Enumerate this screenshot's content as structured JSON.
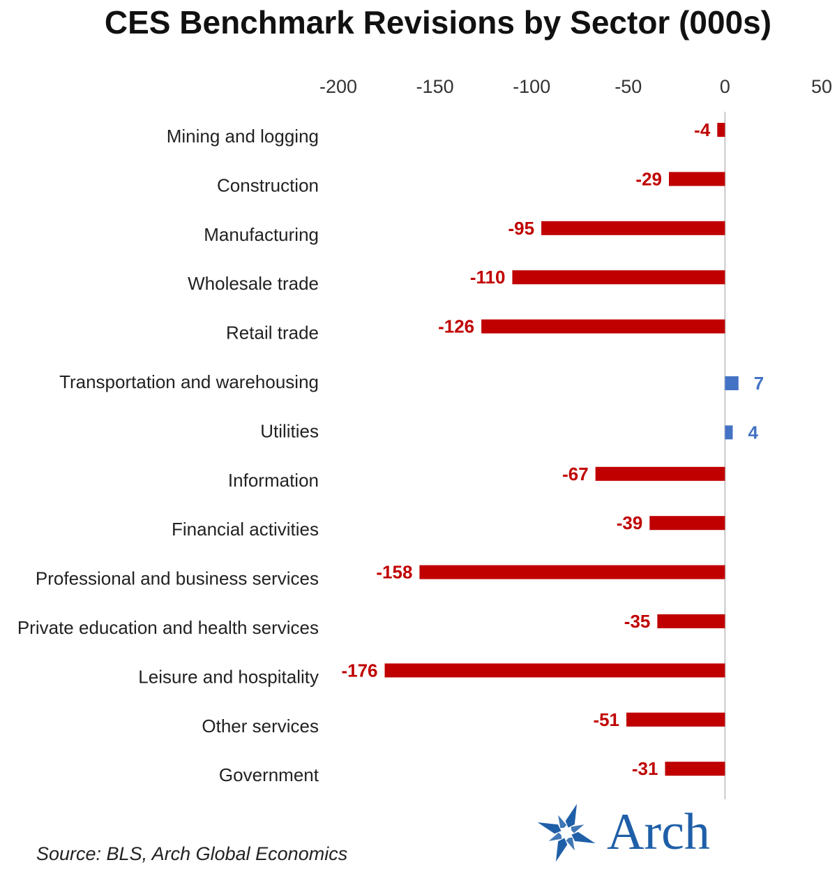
{
  "chart_data": {
    "type": "bar",
    "orientation": "horizontal",
    "title": "CES Benchmark Revisions by Sector (000s)",
    "xlabel": "",
    "ylabel": "",
    "xlim": [
      -200,
      50
    ],
    "x_ticks": [
      -200,
      -150,
      -100,
      -50,
      0,
      50
    ],
    "grid": false,
    "categories": [
      "Mining and logging",
      "Construction",
      "Manufacturing",
      "Wholesale trade",
      "Retail trade",
      "Transportation and warehousing",
      "Utilities",
      "Information",
      "Financial activities",
      "Professional and business services",
      "Private education and health services",
      "Leisure and hospitality",
      "Other services",
      "Government"
    ],
    "values": [
      -4,
      -29,
      -95,
      -110,
      -126,
      7,
      4,
      -67,
      -39,
      -158,
      -35,
      -176,
      -51,
      -31
    ],
    "negative_color": "#c00000",
    "positive_color": "#4472c4"
  },
  "source": "Source: BLS, Arch Global Economics",
  "logo": {
    "text": "Arch",
    "color": "#1f5fa8"
  }
}
